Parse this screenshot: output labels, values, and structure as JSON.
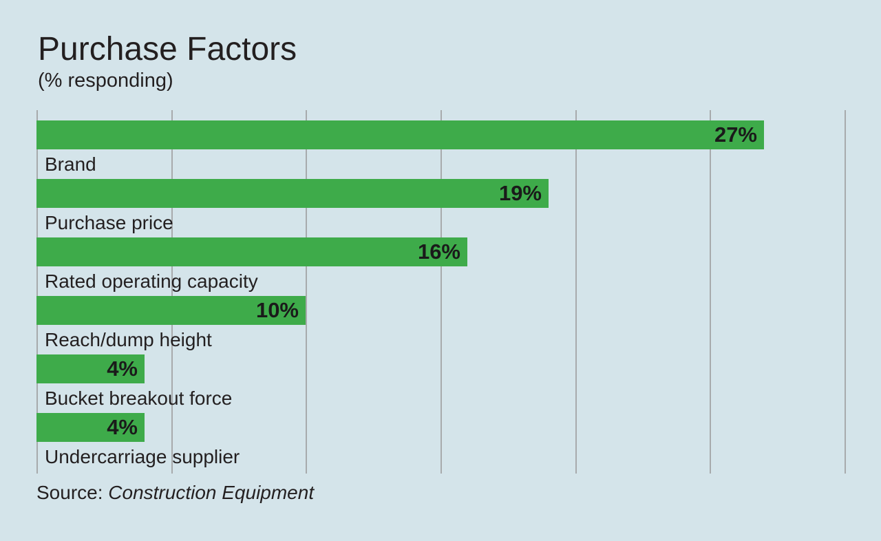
{
  "header": {
    "title": "Purchase Factors",
    "subtitle": "(% responding)"
  },
  "chart_data": {
    "type": "bar",
    "orientation": "horizontal",
    "title": "Purchase Factors",
    "subtitle": "(% responding)",
    "categories": [
      "Brand",
      "Purchase price",
      "Rated operating capacity",
      "Reach/dump height",
      "Bucket breakout force",
      "Undercarriage supplier"
    ],
    "values": [
      27,
      19,
      16,
      10,
      4,
      4
    ],
    "value_labels": [
      "27%",
      "19%",
      "16%",
      "10%",
      "4%",
      "4%"
    ],
    "unit": "%",
    "xlim": [
      0,
      30
    ],
    "gridline_interval": 5,
    "grid": "vertical",
    "legend": "none",
    "colors": {
      "bar": "#3eab4a",
      "background": "#d4e4ea",
      "gridline": "#a7aaac",
      "text": "#231f20"
    }
  },
  "source": {
    "prefix": "Source: ",
    "publication": "Construction Equipment"
  }
}
